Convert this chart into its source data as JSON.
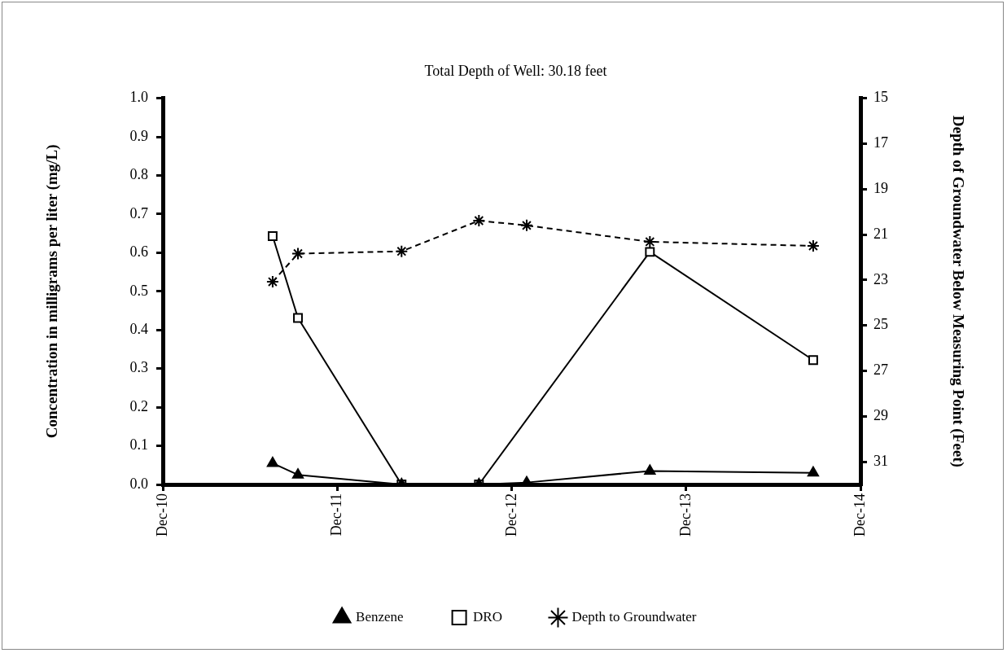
{
  "chart_data": {
    "type": "line",
    "title": "Total Depth of Well: 30.18 feet",
    "ylabel": "Concentration in milligrams per liter (mg/L)",
    "y2label": "Depth of Groundwater Below Measuring Point (Feet)",
    "x": [
      "2011-07-19",
      "2011-09-10",
      "2012-04-14",
      "2012-09-23",
      "2013-01-01",
      "2013-09-16",
      "2014-08-24"
    ],
    "xlim": [
      "2010-12-01",
      "2014-12-01"
    ],
    "xticks": [
      {
        "value": "2010-12-01",
        "label": "Dec-10"
      },
      {
        "value": "2011-12-01",
        "label": "Dec-11"
      },
      {
        "value": "2012-12-01",
        "label": "Dec-12"
      },
      {
        "value": "2013-12-01",
        "label": "Dec-13"
      },
      {
        "value": "2014-12-01",
        "label": "Dec-14"
      }
    ],
    "ylim": [
      0,
      1
    ],
    "yticks": [
      {
        "value": 0,
        "label": "0.0"
      },
      {
        "value": 0.1,
        "label": "0.1"
      },
      {
        "value": 0.2,
        "label": "0.2"
      },
      {
        "value": 0.3,
        "label": "0.3"
      },
      {
        "value": 0.4,
        "label": "0.4"
      },
      {
        "value": 0.5,
        "label": "0.5"
      },
      {
        "value": 0.6,
        "label": "0.6"
      },
      {
        "value": 0.7,
        "label": "0.7"
      },
      {
        "value": 0.8,
        "label": "0.8"
      },
      {
        "value": 0.9,
        "label": "0.9"
      },
      {
        "value": 1,
        "label": "1.0"
      }
    ],
    "y2lim": [
      32,
      15
    ],
    "y2ticks": [
      15,
      17,
      19,
      21,
      23,
      25,
      27,
      29,
      31
    ],
    "grid": false,
    "legend": "bottom",
    "series": [
      {
        "name": "Benzene",
        "color": "#000000",
        "marker": "triangle",
        "line_style": "solid",
        "values": [
          0.055,
          0.025,
          0,
          0,
          0.005,
          0.035,
          0.03
        ]
      },
      {
        "name": "DRO",
        "color": "#000000",
        "marker": "square",
        "line_style": "solid",
        "values": [
          0.643,
          0.431,
          0,
          0,
          null,
          0.602,
          0.322
        ]
      },
      {
        "name": "Depth to Groundwater",
        "color": "#000000",
        "marker": "cross",
        "line_style": "dashed",
        "axis": "y2",
        "values": [
          23.08,
          21.84,
          21.74,
          20.39,
          20.6,
          21.32,
          21.5
        ]
      }
    ]
  }
}
